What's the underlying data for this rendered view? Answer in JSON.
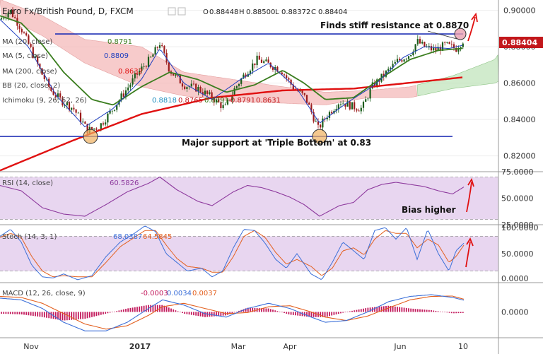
{
  "header": {
    "symbol": "Euro Fx/British Pound, D, FXCM",
    "ohlc": {
      "o_label": "O",
      "o": "0.88448",
      "h_label": "H",
      "h": "0.88500",
      "l_label": "L",
      "l": "0.88372",
      "c_label": "C",
      "c": "0.88404"
    }
  },
  "legends": {
    "ma20": {
      "label": "MA (20, close)",
      "value": "0.8791"
    },
    "ma5": {
      "label": "MA (5, close)",
      "value": "0.8809"
    },
    "ma200": {
      "label": "MA (200, close)",
      "value": "0.8632"
    },
    "bb": {
      "label": "BB (20, close, 2)"
    },
    "ichimoku": {
      "label": "Ichimoku (9, 26, 52, 26)",
      "v1": "0.8818",
      "v2": "0.8765",
      "v3": "0.8791",
      "v4": "0.8791",
      "v5": "0.8631"
    },
    "rsi": {
      "label": "RSI (14, close)",
      "value": "60.5826"
    },
    "stoch": {
      "label": "Stoch (14, 3, 1)",
      "k": "68.0387",
      "d": "64.5845"
    },
    "macd": {
      "label": "MACD (12, 26, close, 9)",
      "hist": "-0.0003",
      "macd": "0.0034",
      "signal": "0.0037"
    }
  },
  "annotations": {
    "resistance": "Finds stiff resistance at 0.8870",
    "support": "Major support at 'Triple Bottom' at 0.83",
    "bias": "Bias higher"
  },
  "price_tag": "0.88404",
  "colors": {
    "candle_up": "#1a5c1a",
    "candle_down": "#9b1b1b",
    "ma200": "#e01010",
    "ma20": "#3a7d1e",
    "ma5": "#1f3fbf",
    "cloud": "#f4b9b9",
    "cloud_green": "#c5e6c0",
    "rsi": "#8e3b9e",
    "rsi_band": "#e8d6f0",
    "stoch_k": "#3b6fd8",
    "stoch_d": "#e3601f",
    "macd": "#3b6fd8",
    "signal": "#e3601f",
    "hist": "#c2185b",
    "support_line": "#1f2fb5",
    "arrow": "#e01010",
    "price_tag": "#c2171b"
  },
  "chart_data": [
    {
      "type": "candlestick",
      "title": "Euro Fx/British Pound, D, FXCM",
      "x_ticks": [
        "Nov",
        "2017",
        "Mar",
        "Apr",
        "Jun",
        "10"
      ],
      "y_ticks": [
        "0.82000",
        "0.84000",
        "0.86000",
        "0.88000",
        "0.90000"
      ],
      "ylim": [
        0.8125,
        0.9045
      ],
      "close_anchors": [
        [
          0,
          0.895
        ],
        [
          14,
          0.9
        ],
        [
          30,
          0.89
        ],
        [
          42,
          0.88
        ],
        [
          58,
          0.866
        ],
        [
          72,
          0.856
        ],
        [
          88,
          0.85
        ],
        [
          104,
          0.846
        ],
        [
          124,
          0.834
        ],
        [
          140,
          0.836
        ],
        [
          158,
          0.845
        ],
        [
          178,
          0.856
        ],
        [
          196,
          0.866
        ],
        [
          214,
          0.874
        ],
        [
          226,
          0.882
        ],
        [
          240,
          0.867
        ],
        [
          260,
          0.859
        ],
        [
          280,
          0.857
        ],
        [
          300,
          0.852
        ],
        [
          318,
          0.846
        ],
        [
          332,
          0.857
        ],
        [
          348,
          0.866
        ],
        [
          364,
          0.873
        ],
        [
          382,
          0.87
        ],
        [
          398,
          0.867
        ],
        [
          414,
          0.858
        ],
        [
          432,
          0.852
        ],
        [
          450,
          0.835
        ],
        [
          462,
          0.842
        ],
        [
          480,
          0.85
        ],
        [
          500,
          0.847
        ],
        [
          512,
          0.846
        ],
        [
          526,
          0.858
        ],
        [
          542,
          0.864
        ],
        [
          562,
          0.872
        ],
        [
          580,
          0.876
        ],
        [
          590,
          0.883
        ],
        [
          600,
          0.88
        ],
        [
          615,
          0.878
        ],
        [
          630,
          0.881
        ],
        [
          645,
          0.879
        ],
        [
          656,
          0.884
        ]
      ],
      "ma200_anchors": [
        [
          0,
          0.812
        ],
        [
          100,
          0.828
        ],
        [
          200,
          0.843
        ],
        [
          300,
          0.852
        ],
        [
          400,
          0.856
        ],
        [
          500,
          0.857
        ],
        [
          600,
          0.861
        ],
        [
          655,
          0.8632
        ]
      ],
      "ma20_anchors": [
        [
          0,
          0.897
        ],
        [
          30,
          0.893
        ],
        [
          60,
          0.881
        ],
        [
          90,
          0.866
        ],
        [
          130,
          0.851
        ],
        [
          160,
          0.848
        ],
        [
          200,
          0.858
        ],
        [
          240,
          0.866
        ],
        [
          280,
          0.862
        ],
        [
          320,
          0.855
        ],
        [
          360,
          0.859
        ],
        [
          400,
          0.867
        ],
        [
          430,
          0.86
        ],
        [
          460,
          0.851
        ],
        [
          500,
          0.852
        ],
        [
          540,
          0.863
        ],
        [
          580,
          0.873
        ],
        [
          620,
          0.878
        ],
        [
          655,
          0.8791
        ]
      ],
      "ma5_anchors": [
        [
          0,
          0.895
        ],
        [
          40,
          0.88
        ],
        [
          80,
          0.853
        ],
        [
          120,
          0.836
        ],
        [
          160,
          0.846
        ],
        [
          200,
          0.862
        ],
        [
          226,
          0.879
        ],
        [
          260,
          0.86
        ],
        [
          300,
          0.851
        ],
        [
          340,
          0.862
        ],
        [
          380,
          0.871
        ],
        [
          420,
          0.857
        ],
        [
          452,
          0.838
        ],
        [
          490,
          0.849
        ],
        [
          530,
          0.859
        ],
        [
          570,
          0.874
        ],
        [
          600,
          0.88
        ],
        [
          635,
          0.879
        ],
        [
          655,
          0.8809
        ]
      ],
      "cloud_upper_anchors": [
        [
          0,
          0.906
        ],
        [
          60,
          0.897
        ],
        [
          120,
          0.884
        ],
        [
          200,
          0.88
        ],
        [
          260,
          0.866
        ],
        [
          330,
          0.862
        ],
        [
          400,
          0.858
        ],
        [
          460,
          0.855
        ],
        [
          520,
          0.856
        ],
        [
          580,
          0.858
        ],
        [
          640,
          0.864
        ],
        [
          700,
          0.873
        ],
        [
          705,
          0.876
        ]
      ],
      "cloud_lower_anchors": [
        [
          0,
          0.898
        ],
        [
          60,
          0.886
        ],
        [
          120,
          0.871
        ],
        [
          200,
          0.858
        ],
        [
          260,
          0.853
        ],
        [
          330,
          0.85
        ],
        [
          400,
          0.849
        ],
        [
          460,
          0.848
        ],
        [
          520,
          0.852
        ],
        [
          580,
          0.852
        ],
        [
          640,
          0.857
        ],
        [
          700,
          0.86
        ],
        [
          705,
          0.861
        ]
      ],
      "resistance": 0.887,
      "support": 0.8307
    },
    {
      "type": "line",
      "name": "RSI (14, close)",
      "y_ticks": [
        "25.0000",
        "50.0000",
        "75.0000"
      ],
      "ylim": [
        25,
        75
      ],
      "band": [
        30,
        70
      ],
      "anchors": [
        [
          0,
          62
        ],
        [
          30,
          57
        ],
        [
          60,
          41
        ],
        [
          90,
          35
        ],
        [
          120,
          33
        ],
        [
          150,
          44
        ],
        [
          180,
          56
        ],
        [
          210,
          64
        ],
        [
          226,
          70
        ],
        [
          250,
          58
        ],
        [
          280,
          47
        ],
        [
          300,
          43
        ],
        [
          330,
          56
        ],
        [
          350,
          62
        ],
        [
          370,
          60
        ],
        [
          390,
          56
        ],
        [
          410,
          51
        ],
        [
          430,
          44
        ],
        [
          452,
          33
        ],
        [
          480,
          43
        ],
        [
          500,
          46
        ],
        [
          520,
          58
        ],
        [
          540,
          63
        ],
        [
          560,
          65
        ],
        [
          580,
          63
        ],
        [
          600,
          61
        ],
        [
          620,
          57
        ],
        [
          640,
          54
        ],
        [
          656,
          60.58
        ]
      ]
    },
    {
      "type": "line",
      "name": "Stoch (14, 3, 1)",
      "y_ticks": [
        "0.0000",
        "50.0000",
        "100.0000"
      ],
      "ylim": [
        0,
        100
      ],
      "band": [
        20,
        80
      ],
      "k_anchors": [
        [
          0,
          80
        ],
        [
          15,
          92
        ],
        [
          30,
          70
        ],
        [
          45,
          30
        ],
        [
          60,
          10
        ],
        [
          75,
          8
        ],
        [
          90,
          15
        ],
        [
          110,
          5
        ],
        [
          130,
          12
        ],
        [
          150,
          45
        ],
        [
          170,
          70
        ],
        [
          190,
          85
        ],
        [
          205,
          98
        ],
        [
          220,
          88
        ],
        [
          235,
          50
        ],
        [
          250,
          35
        ],
        [
          265,
          20
        ],
        [
          285,
          25
        ],
        [
          300,
          10
        ],
        [
          315,
          20
        ],
        [
          330,
          60
        ],
        [
          345,
          92
        ],
        [
          360,
          90
        ],
        [
          375,
          68
        ],
        [
          390,
          40
        ],
        [
          405,
          25
        ],
        [
          420,
          50
        ],
        [
          440,
          15
        ],
        [
          455,
          5
        ],
        [
          470,
          35
        ],
        [
          485,
          70
        ],
        [
          500,
          55
        ],
        [
          515,
          40
        ],
        [
          530,
          90
        ],
        [
          545,
          95
        ],
        [
          560,
          75
        ],
        [
          575,
          95
        ],
        [
          590,
          40
        ],
        [
          605,
          92
        ],
        [
          620,
          50
        ],
        [
          635,
          20
        ],
        [
          645,
          55
        ],
        [
          656,
          68.04
        ]
      ],
      "d_anchors": [
        [
          0,
          78
        ],
        [
          15,
          85
        ],
        [
          30,
          78
        ],
        [
          45,
          45
        ],
        [
          60,
          20
        ],
        [
          75,
          10
        ],
        [
          90,
          12
        ],
        [
          110,
          10
        ],
        [
          130,
          10
        ],
        [
          150,
          35
        ],
        [
          170,
          62
        ],
        [
          190,
          78
        ],
        [
          205,
          90
        ],
        [
          220,
          90
        ],
        [
          235,
          65
        ],
        [
          250,
          42
        ],
        [
          265,
          28
        ],
        [
          285,
          25
        ],
        [
          300,
          18
        ],
        [
          315,
          18
        ],
        [
          330,
          45
        ],
        [
          345,
          80
        ],
        [
          360,
          90
        ],
        [
          375,
          78
        ],
        [
          390,
          52
        ],
        [
          405,
          32
        ],
        [
          420,
          40
        ],
        [
          440,
          28
        ],
        [
          455,
          12
        ],
        [
          470,
          25
        ],
        [
          485,
          55
        ],
        [
          500,
          60
        ],
        [
          515,
          48
        ],
        [
          530,
          75
        ],
        [
          545,
          90
        ],
        [
          560,
          85
        ],
        [
          575,
          85
        ],
        [
          590,
          60
        ],
        [
          605,
          75
        ],
        [
          620,
          65
        ],
        [
          635,
          35
        ],
        [
          645,
          45
        ],
        [
          656,
          64.58
        ]
      ]
    },
    {
      "type": "line",
      "name": "MACD (12, 26, close, 9)",
      "y_ticks": [
        "0.0000"
      ],
      "ylim": [
        -0.0075,
        0.0085
      ],
      "macd_anchors": [
        [
          0,
          0.004
        ],
        [
          30,
          0.0035
        ],
        [
          60,
          0.001
        ],
        [
          90,
          -0.003
        ],
        [
          120,
          -0.0055
        ],
        [
          150,
          -0.0055
        ],
        [
          180,
          -0.003
        ],
        [
          210,
          0.001
        ],
        [
          230,
          0.0035
        ],
        [
          260,
          0.002
        ],
        [
          290,
          -0.0005
        ],
        [
          320,
          -0.0015
        ],
        [
          350,
          0.001
        ],
        [
          380,
          0.0025
        ],
        [
          410,
          0.001
        ],
        [
          440,
          -0.0015
        ],
        [
          460,
          -0.003
        ],
        [
          490,
          -0.0025
        ],
        [
          520,
          0.0
        ],
        [
          550,
          0.003
        ],
        [
          580,
          0.0045
        ],
        [
          610,
          0.005
        ],
        [
          640,
          0.0042
        ],
        [
          656,
          0.0034
        ]
      ],
      "signal_anchors": [
        [
          0,
          0.0045
        ],
        [
          30,
          0.0042
        ],
        [
          60,
          0.0025
        ],
        [
          90,
          -0.0005
        ],
        [
          120,
          -0.0035
        ],
        [
          150,
          -0.005
        ],
        [
          180,
          -0.004
        ],
        [
          210,
          -0.001
        ],
        [
          230,
          0.0015
        ],
        [
          260,
          0.0025
        ],
        [
          290,
          0.001
        ],
        [
          320,
          -0.0005
        ],
        [
          350,
          -0.0002
        ],
        [
          380,
          0.0015
        ],
        [
          410,
          0.0018
        ],
        [
          440,
          0.0
        ],
        [
          460,
          -0.0015
        ],
        [
          490,
          -0.0025
        ],
        [
          520,
          -0.0012
        ],
        [
          550,
          0.0012
        ],
        [
          580,
          0.0035
        ],
        [
          610,
          0.0045
        ],
        [
          640,
          0.0046
        ],
        [
          656,
          0.0037
        ]
      ]
    }
  ]
}
